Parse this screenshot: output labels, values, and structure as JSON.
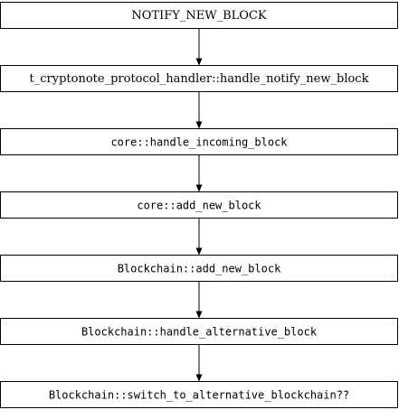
{
  "diagram": {
    "nodes": [
      {
        "id": "n1",
        "label": "NOTIFY_NEW_BLOCK",
        "style": "serif"
      },
      {
        "id": "n2",
        "label": "t_cryptonote_protocol_handler::handle_notify_new_block",
        "style": "serif"
      },
      {
        "id": "n3",
        "label": "core::handle_incoming_block",
        "style": "mono"
      },
      {
        "id": "n4",
        "label": "core::add_new_block",
        "style": "mono"
      },
      {
        "id": "n5",
        "label": "Blockchain::add_new_block",
        "style": "mono"
      },
      {
        "id": "n6",
        "label": "Blockchain::handle_alternative_block",
        "style": "mono"
      },
      {
        "id": "n7",
        "label": "Blockchain::switch_to_alternative_blockchain??",
        "style": "mono"
      }
    ],
    "edges": [
      {
        "from": "n1",
        "to": "n2"
      },
      {
        "from": "n2",
        "to": "n3"
      },
      {
        "from": "n3",
        "to": "n4"
      },
      {
        "from": "n4",
        "to": "n5"
      },
      {
        "from": "n5",
        "to": "n6"
      },
      {
        "from": "n6",
        "to": "n7"
      }
    ]
  }
}
